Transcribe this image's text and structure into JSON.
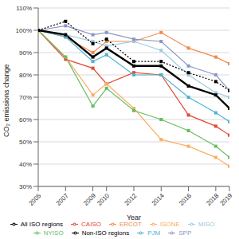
{
  "chart_data": {
    "type": "line",
    "x_label": "Year",
    "y_label": "CO₂ emissions change",
    "x": [
      2005,
      2007,
      2009,
      2010,
      2012,
      2014,
      2016,
      2018,
      2019
    ],
    "xlim": [
      2005,
      2019
    ],
    "xticks": [
      2005,
      2007,
      2009,
      2010,
      2012,
      2014,
      2016,
      2018,
      2019
    ],
    "ylim": [
      30,
      110
    ],
    "yticks": [
      {
        "value": 30,
        "label": "30%"
      },
      {
        "value": 40,
        "label": "40%"
      },
      {
        "value": 50,
        "label": "50%"
      },
      {
        "value": 60,
        "label": "60%"
      },
      {
        "value": 70,
        "label": "70%"
      },
      {
        "value": 80,
        "label": "80%"
      },
      {
        "value": 90,
        "label": "90%"
      },
      {
        "value": 100,
        "label": "100%"
      },
      {
        "value": 110,
        "label": "110%"
      }
    ],
    "grid": true,
    "legend": "bottom",
    "series": [
      {
        "name": "CAISO",
        "color": "#e34a33",
        "marker": "square",
        "line_style": "solid",
        "values": [
          100,
          87,
          83,
          76,
          81,
          80,
          62,
          57,
          53
        ]
      },
      {
        "name": "ERCOT",
        "color": "#f08a4b",
        "marker": "square",
        "line_style": "solid",
        "values": [
          100,
          97,
          90,
          95,
          95,
          99,
          92,
          88,
          85
        ]
      },
      {
        "name": "ISONE",
        "color": "#fdae61",
        "marker": "square",
        "line_style": "solid",
        "values": [
          100,
          88,
          71,
          76,
          65,
          51,
          48,
          43,
          39
        ]
      },
      {
        "name": "MISO",
        "color": "#9ecae1",
        "marker": "square",
        "line_style": "solid",
        "values": [
          100,
          98,
          95,
          93,
          95,
          91,
          80,
          72,
          70
        ]
      },
      {
        "name": "NYISO",
        "color": "#66bd63",
        "marker": "square",
        "line_style": "solid",
        "values": [
          100,
          88,
          66,
          74,
          64,
          60,
          55,
          48,
          43
        ]
      },
      {
        "name": "PJM",
        "color": "#4eb3d3",
        "marker": "square",
        "line_style": "solid",
        "values": [
          100,
          97,
          86,
          89,
          80,
          80,
          70,
          63,
          59
        ]
      },
      {
        "name": "SPP",
        "color": "#8c96c6",
        "marker": "square",
        "line_style": "solid",
        "values": [
          100,
          102,
          98,
          99,
          96,
          95,
          84,
          80,
          73
        ]
      },
      {
        "name": "All ISO regions",
        "color": "#000000",
        "marker": "square",
        "line_style": "solid",
        "values": [
          100,
          98,
          88,
          92,
          84,
          84,
          75,
          71,
          65
        ]
      },
      {
        "name": "Non-ISO regions",
        "color": "#000000",
        "marker": "square",
        "line_style": "dotted",
        "values": [
          100,
          104,
          94,
          96,
          86,
          86,
          81,
          77,
          73
        ]
      }
    ]
  }
}
